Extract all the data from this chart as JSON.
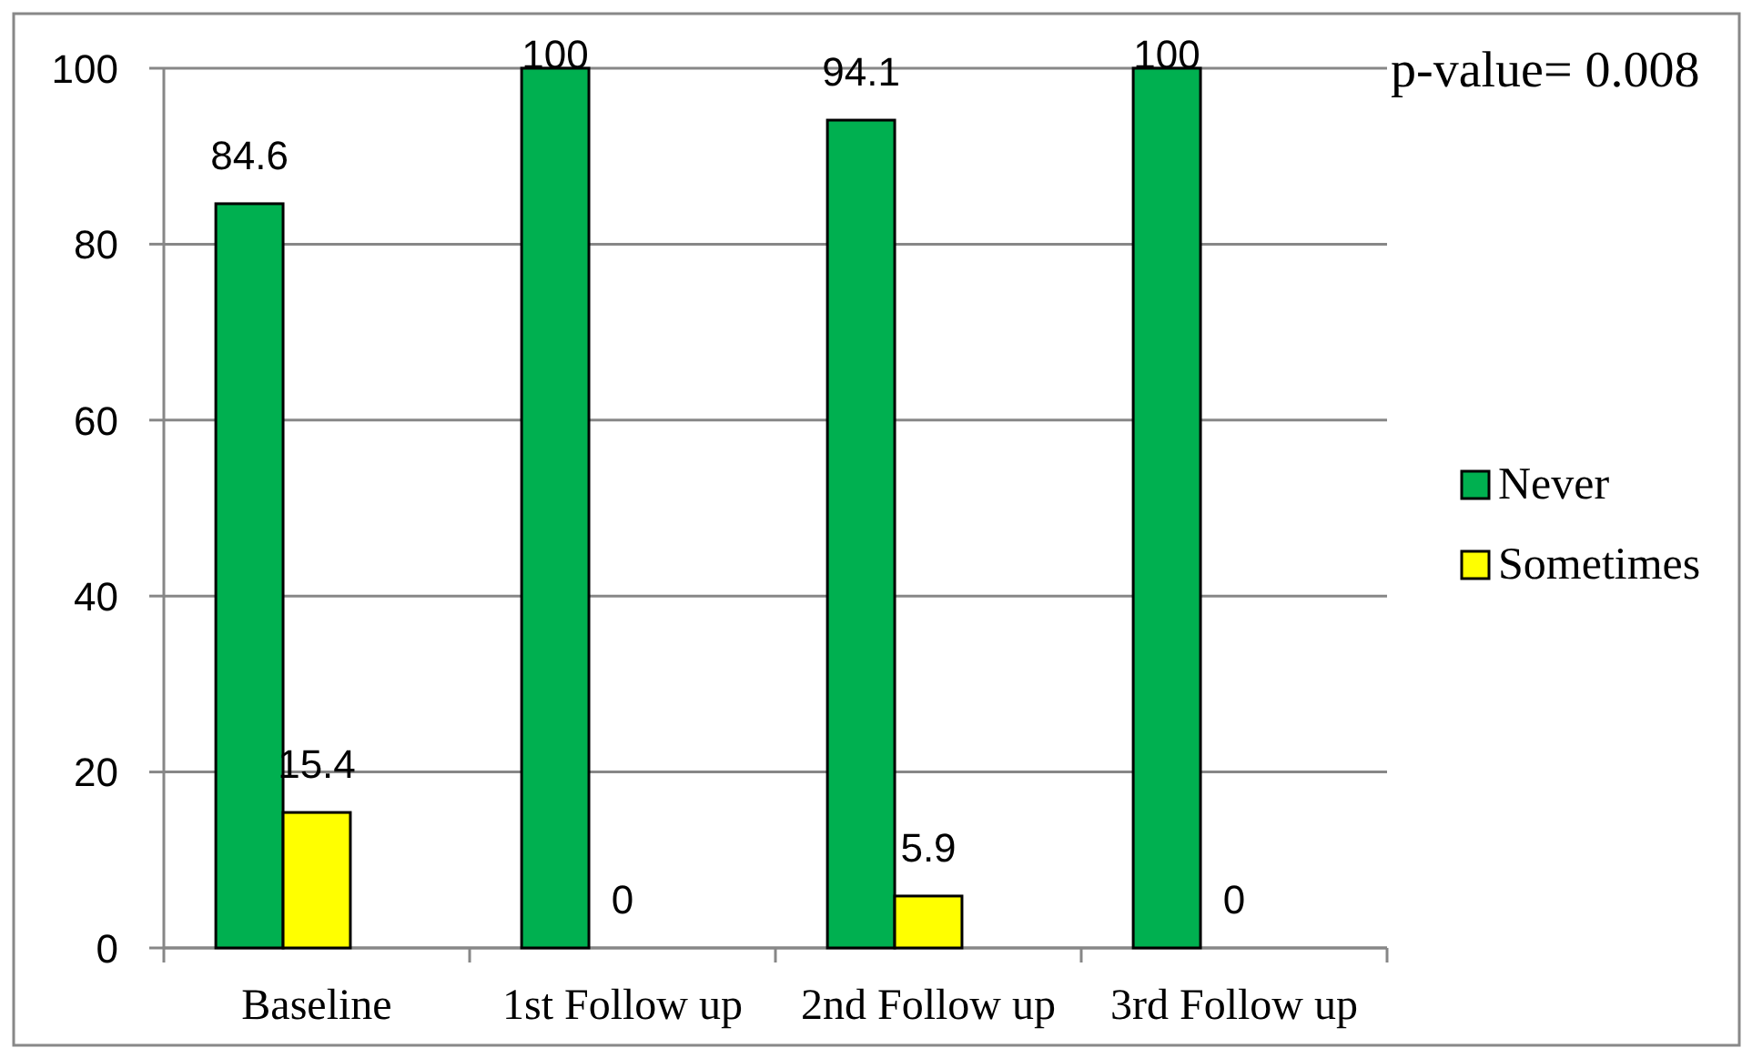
{
  "chart_data": {
    "type": "bar",
    "categories": [
      "Baseline",
      "1st Follow up",
      "2nd Follow up",
      "3rd Follow up"
    ],
    "series": [
      {
        "name": "Never",
        "color": "#00b050",
        "values": [
          84.6,
          100,
          94.1,
          100
        ]
      },
      {
        "name": "Sometimes",
        "color": "#ffff00",
        "values": [
          15.4,
          0,
          5.9,
          0
        ]
      }
    ],
    "ylim": [
      0,
      100
    ],
    "yticks": [
      0,
      20,
      40,
      60,
      80,
      100
    ],
    "grid": "y",
    "legend": "right",
    "data_labels": true,
    "annotations": [
      "p-value= 0.008"
    ]
  }
}
